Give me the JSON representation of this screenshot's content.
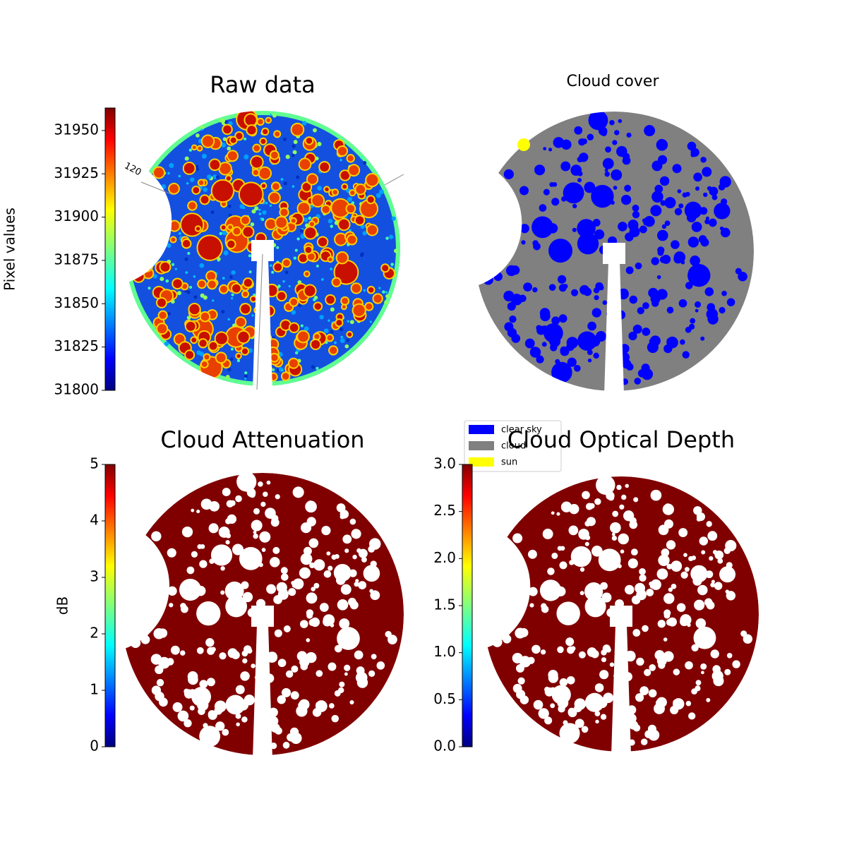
{
  "chart_data": [
    {
      "type": "image",
      "title": "Raw data",
      "cmap": "jet",
      "colorbar_label": "Pixel values",
      "clim": [
        31800,
        31963
      ],
      "cticks": [
        31800,
        31825,
        31850,
        31875,
        31900,
        31925,
        31950
      ],
      "annotations": [
        "120"
      ]
    },
    {
      "type": "mask",
      "title": "Cloud cover",
      "legend_loc": "lower left",
      "legend": [
        {
          "name": "clear sky",
          "color": "#0000ff"
        },
        {
          "name": "cloud",
          "color": "#808080"
        },
        {
          "name": "sun",
          "color": "#ffff00"
        }
      ]
    },
    {
      "type": "image",
      "title": "Cloud Attenuation",
      "cmap": "jet",
      "colorbar_label": "dB",
      "clim": [
        0,
        5
      ],
      "cticks": [
        0,
        1,
        2,
        3,
        4,
        5
      ]
    },
    {
      "type": "image",
      "title": "Cloud Optical Depth",
      "cmap": "jet",
      "clim": [
        0,
        3
      ],
      "cticks": [
        {
          "value": 0,
          "label": "0.0"
        },
        0.5,
        {
          "value": 1,
          "label": "1.0"
        },
        1.5,
        {
          "value": 2,
          "label": "2.0"
        },
        2.5,
        {
          "value": 3,
          "label": "3.0"
        }
      ]
    }
  ]
}
